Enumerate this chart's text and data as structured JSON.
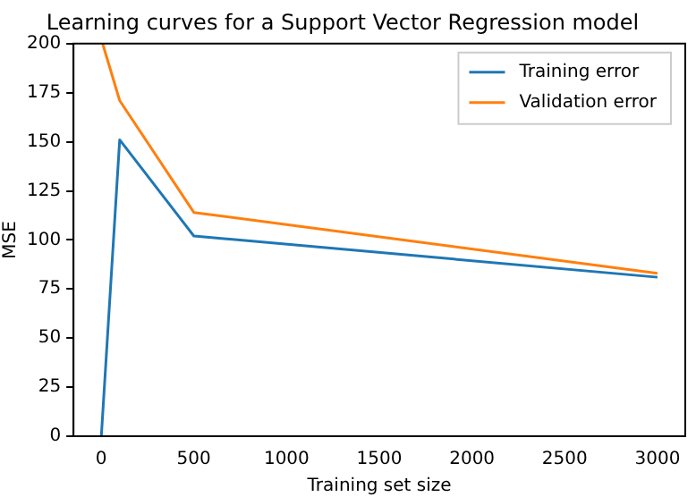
{
  "chart_data": {
    "type": "line",
    "title": "Learning curves for a Support Vector Regression model",
    "xlabel": "Training set size",
    "ylabel": "MSE",
    "series": [
      {
        "name": "Training error",
        "color": "#1f77b4",
        "x": [
          1,
          100,
          500,
          3000
        ],
        "values": [
          0,
          151,
          102,
          81
        ]
      },
      {
        "name": "Validation error",
        "color": "#ff7f0e",
        "x": [
          8,
          100,
          500,
          3000
        ],
        "values": [
          200,
          171,
          114,
          83
        ]
      }
    ],
    "xlim": [
      -149,
      3150
    ],
    "xticks": [
      0,
      500,
      1000,
      1500,
      2000,
      2500,
      3000
    ],
    "ylim": [
      0,
      200
    ],
    "yticks": [
      0,
      25,
      50,
      75,
      100,
      125,
      150,
      175,
      200
    ],
    "legend": "top right",
    "marker": "none",
    "line_style": "solid"
  }
}
